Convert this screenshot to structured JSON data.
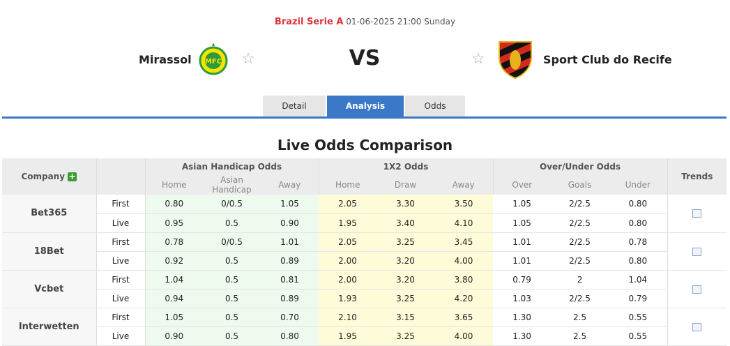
{
  "match": {
    "league": "Brazil Serie A",
    "datetime": "01-06-2025 21:00 Sunday",
    "home": "Mirassol",
    "away": "Sport Club do Recife",
    "vs": "VS"
  },
  "tabs": [
    "Detail",
    "Analysis",
    "Odds"
  ],
  "active_tab": "Analysis",
  "section_title": "Live Odds Comparison",
  "table": {
    "headers": {
      "company": "Company",
      "ah": "Asian Handicap Odds",
      "x12": "1X2 Odds",
      "ou": "Over/Under Odds",
      "trends": "Trends"
    },
    "subheaders": [
      "Home",
      "Asian Handicap",
      "Away",
      "Home",
      "Draw",
      "Away",
      "Over",
      "Goals",
      "Under"
    ],
    "companies": [
      {
        "name": "Bet365",
        "rows": [
          [
            "First",
            "0.80",
            "0/0.5",
            "1.05",
            "2.05",
            "3.30",
            "3.50",
            "1.05",
            "2/2.5",
            "0.80"
          ],
          [
            "Live",
            "0.95",
            "0.5",
            "0.90",
            "1.95",
            "3.40",
            "4.10",
            "1.05",
            "2/2.5",
            "0.80"
          ]
        ]
      },
      {
        "name": "18Bet",
        "rows": [
          [
            "First",
            "0.78",
            "0/0.5",
            "1.01",
            "2.05",
            "3.25",
            "3.45",
            "1.01",
            "2/2.5",
            "0.78"
          ],
          [
            "Live",
            "0.92",
            "0.5",
            "0.89",
            "2.00",
            "3.20",
            "4.00",
            "1.01",
            "2/2.5",
            "0.80"
          ]
        ]
      },
      {
        "name": "Vcbet",
        "rows": [
          [
            "First",
            "1.04",
            "0.5",
            "0.81",
            "2.00",
            "3.20",
            "3.80",
            "0.79",
            "2",
            "1.04"
          ],
          [
            "Live",
            "0.94",
            "0.5",
            "0.89",
            "1.93",
            "3.25",
            "4.20",
            "1.03",
            "2/2.5",
            "0.79"
          ]
        ]
      },
      {
        "name": "Interwetten",
        "rows": [
          [
            "First",
            "1.05",
            "0.5",
            "0.70",
            "2.10",
            "3.15",
            "3.65",
            "1.30",
            "2.5",
            "0.55"
          ],
          [
            "Live",
            "0.90",
            "0.5",
            "0.80",
            "1.95",
            "3.25",
            "4.00",
            "1.30",
            "2.5",
            "0.55"
          ]
        ]
      }
    ]
  },
  "colors": {
    "accent": "#3b78c8",
    "league": "#d9363e",
    "ah_bg": "#eefaee",
    "x12_bg": "#fdfbd8"
  }
}
